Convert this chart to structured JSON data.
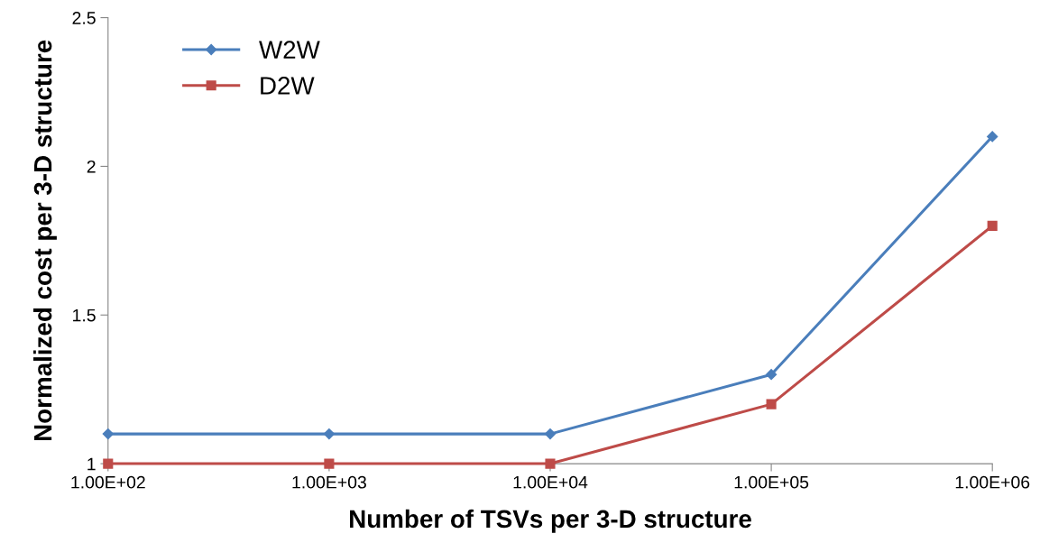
{
  "chart_data": {
    "type": "line",
    "xlabel": "Number of TSVs per 3-D structure",
    "ylabel": "Normalized cost per 3-D structure",
    "x": [
      100,
      1000,
      10000,
      100000,
      1000000
    ],
    "log": "x",
    "xlim": [
      100,
      1000000
    ],
    "xticks": [
      {
        "value": 100,
        "label": "1.00E+02"
      },
      {
        "value": 1000,
        "label": "1.00E+03"
      },
      {
        "value": 10000,
        "label": "1.00E+04"
      },
      {
        "value": 100000,
        "label": "1.00E+05"
      },
      {
        "value": 1000000,
        "label": "1.00E+06"
      }
    ],
    "ylim": [
      1,
      2.5
    ],
    "yticks": [
      1,
      1.5,
      2,
      2.5
    ],
    "grid": false,
    "legend": "top left",
    "line_style": "solid",
    "series": [
      {
        "name": "W2W",
        "color": "#4a7ebb",
        "marker": "diamond",
        "values": [
          1.1,
          1.1,
          1.1,
          1.3,
          2.1
        ]
      },
      {
        "name": "D2W",
        "color": "#be4b48",
        "marker": "square",
        "values": [
          1,
          1,
          1,
          1.2,
          1.8
        ]
      }
    ]
  }
}
